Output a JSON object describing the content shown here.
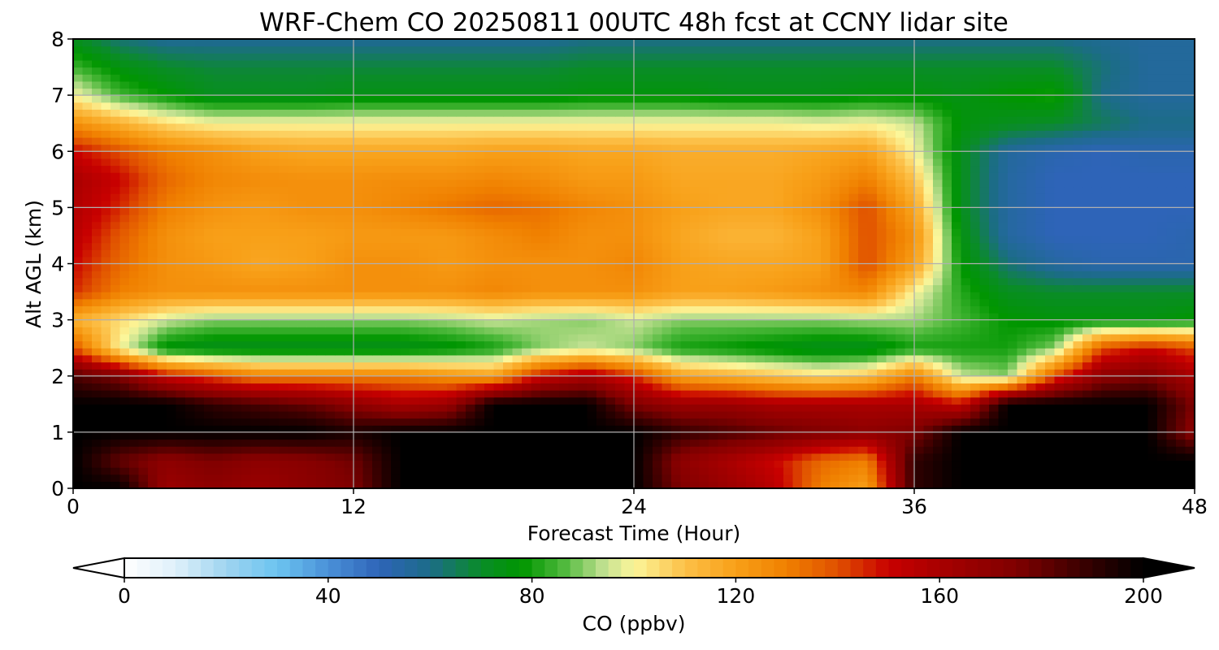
{
  "chart_data": {
    "type": "heatmap",
    "title": "WRF-Chem CO  20250811 00UTC 48h fcst at CCNY lidar site",
    "xlabel": "Forecast Time (Hour)",
    "ylabel": "Alt AGL (km)",
    "xlim": [
      0,
      48
    ],
    "ylim": [
      0,
      8
    ],
    "x_ticks": [
      "0",
      "12",
      "24",
      "36",
      "48"
    ],
    "y_ticks": [
      "0",
      "1",
      "2",
      "3",
      "4",
      "5",
      "6",
      "7",
      "8"
    ],
    "grid": true,
    "x": [
      0,
      2,
      4,
      6,
      8,
      10,
      12,
      14,
      16,
      18,
      20,
      22,
      24,
      26,
      28,
      30,
      32,
      34,
      36,
      38,
      40,
      42,
      44,
      46,
      48
    ],
    "y": [
      0,
      0.5,
      1,
      1.5,
      2,
      2.5,
      3,
      3.5,
      4,
      4.5,
      5,
      5.5,
      6,
      6.5,
      7,
      7.5,
      8
    ],
    "z_ppbv": [
      [
        200,
        200,
        165,
        170,
        165,
        170,
        175,
        200,
        200,
        200,
        200,
        200,
        200,
        175,
        165,
        155,
        130,
        120,
        190,
        200,
        200,
        200,
        200,
        200,
        200
      ],
      [
        200,
        180,
        170,
        175,
        170,
        172,
        178,
        200,
        200,
        200,
        200,
        200,
        200,
        170,
        160,
        150,
        135,
        130,
        190,
        200,
        200,
        200,
        200,
        200,
        200
      ],
      [
        200,
        200,
        200,
        200,
        200,
        200,
        195,
        200,
        200,
        200,
        200,
        200,
        200,
        190,
        185,
        180,
        175,
        170,
        175,
        200,
        200,
        200,
        200,
        200,
        170
      ],
      [
        200,
        200,
        200,
        190,
        185,
        180,
        170,
        160,
        165,
        200,
        200,
        200,
        175,
        165,
        165,
        160,
        160,
        160,
        160,
        150,
        200,
        200,
        200,
        200,
        175
      ],
      [
        185,
        175,
        150,
        140,
        130,
        130,
        130,
        130,
        125,
        120,
        150,
        160,
        145,
        120,
        115,
        110,
        105,
        110,
        130,
        95,
        90,
        140,
        170,
        175,
        160
      ],
      [
        140,
        100,
        75,
        72,
        72,
        72,
        72,
        72,
        75,
        80,
        90,
        95,
        90,
        80,
        78,
        75,
        72,
        72,
        80,
        80,
        80,
        90,
        140,
        150,
        140
      ],
      [
        115,
        105,
        95,
        90,
        90,
        90,
        90,
        90,
        92,
        95,
        92,
        90,
        95,
        90,
        90,
        90,
        90,
        92,
        92,
        85,
        78,
        76,
        76,
        75,
        78
      ],
      [
        145,
        130,
        125,
        125,
        125,
        125,
        125,
        125,
        125,
        128,
        125,
        125,
        125,
        120,
        120,
        122,
        125,
        128,
        100,
        82,
        72,
        70,
        70,
        70,
        70
      ],
      [
        150,
        135,
        125,
        122,
        118,
        120,
        125,
        125,
        122,
        125,
        125,
        125,
        128,
        120,
        118,
        118,
        120,
        140,
        120,
        78,
        62,
        55,
        52,
        52,
        52
      ],
      [
        155,
        138,
        125,
        120,
        120,
        120,
        122,
        122,
        122,
        126,
        130,
        125,
        125,
        118,
        114,
        114,
        120,
        140,
        125,
        75,
        55,
        50,
        50,
        50,
        52
      ],
      [
        158,
        145,
        130,
        124,
        122,
        125,
        125,
        128,
        132,
        135,
        133,
        128,
        125,
        120,
        118,
        118,
        125,
        140,
        118,
        72,
        55,
        50,
        50,
        50,
        50
      ],
      [
        160,
        150,
        135,
        128,
        126,
        125,
        125,
        126,
        126,
        128,
        126,
        122,
        122,
        118,
        118,
        118,
        122,
        130,
        110,
        72,
        55,
        50,
        50,
        50,
        50
      ],
      [
        150,
        140,
        130,
        125,
        120,
        118,
        118,
        118,
        118,
        120,
        120,
        118,
        118,
        116,
        116,
        116,
        118,
        120,
        100,
        72,
        56,
        52,
        50,
        52,
        52
      ],
      [
        125,
        115,
        105,
        100,
        100,
        100,
        100,
        100,
        100,
        100,
        100,
        100,
        100,
        100,
        100,
        100,
        98,
        100,
        95,
        76,
        72,
        70,
        65,
        60,
        60
      ],
      [
        100,
        85,
        78,
        72,
        72,
        72,
        74,
        74,
        74,
        74,
        74,
        76,
        76,
        76,
        74,
        74,
        74,
        76,
        76,
        74,
        78,
        80,
        60,
        56,
        56
      ],
      [
        85,
        75,
        70,
        68,
        68,
        68,
        68,
        68,
        68,
        68,
        68,
        70,
        70,
        70,
        70,
        70,
        70,
        70,
        70,
        70,
        70,
        70,
        62,
        56,
        56
      ],
      [
        72,
        62,
        58,
        58,
        58,
        58,
        58,
        58,
        58,
        58,
        58,
        60,
        60,
        60,
        60,
        60,
        60,
        60,
        60,
        60,
        60,
        60,
        58,
        56,
        56
      ]
    ],
    "colorbar": {
      "label": "CO  (ppbv)",
      "ticks": [
        "0",
        "40",
        "80",
        "120",
        "160",
        "200"
      ],
      "tick_values": [
        0,
        40,
        80,
        120,
        160,
        200
      ],
      "range": [
        0,
        200
      ],
      "extend": "both",
      "colormap": [
        [
          0,
          "#ffffff"
        ],
        [
          10,
          "#dff0fa"
        ],
        [
          20,
          "#9fd4f0"
        ],
        [
          30,
          "#6cc4f0"
        ],
        [
          40,
          "#4a90d8"
        ],
        [
          50,
          "#2e64b8"
        ],
        [
          60,
          "#1c6c88"
        ],
        [
          70,
          "#0a8c28"
        ],
        [
          78,
          "#009600"
        ],
        [
          86,
          "#4cb83a"
        ],
        [
          94,
          "#c0e090"
        ],
        [
          100,
          "#fcf69a"
        ],
        [
          110,
          "#fcc048"
        ],
        [
          120,
          "#f8a018"
        ],
        [
          130,
          "#f08000"
        ],
        [
          140,
          "#e05000"
        ],
        [
          150,
          "#c80000"
        ],
        [
          160,
          "#a80000"
        ],
        [
          175,
          "#800000"
        ],
        [
          190,
          "#300000"
        ],
        [
          200,
          "#000000"
        ]
      ]
    }
  }
}
